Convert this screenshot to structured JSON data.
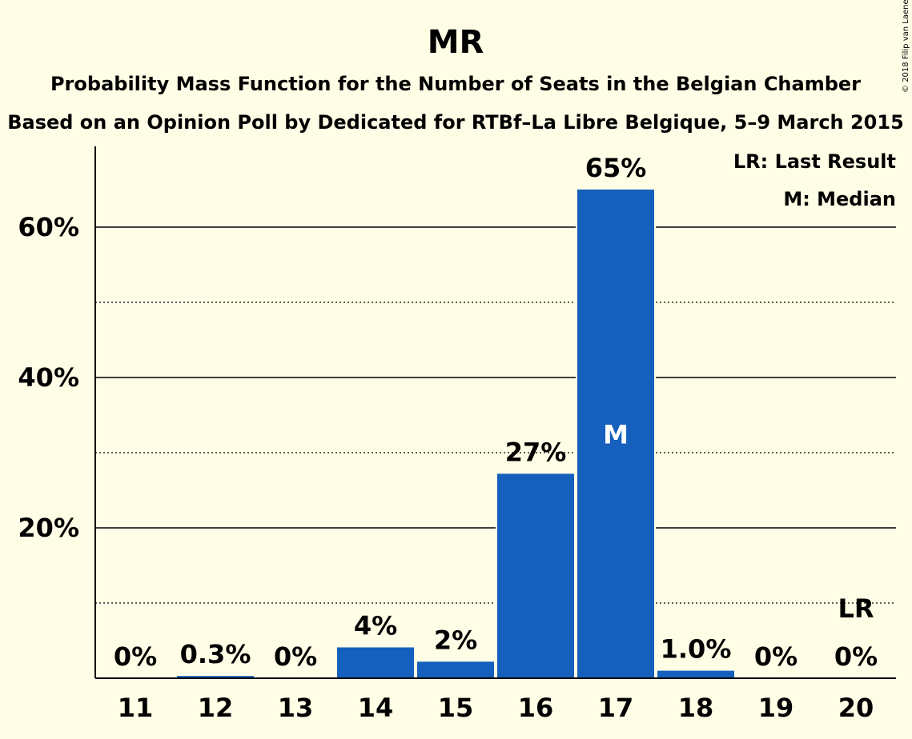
{
  "chart_data": {
    "type": "bar",
    "title": "MR",
    "subtitle": "Probability Mass Function for the Number of Seats in the Belgian Chamber",
    "subtitle2": "Based on an Opinion Poll by Dedicated for RTBf–La Libre Belgique, 5–9 March 2015",
    "copyright": "© 2018 Filip van Laenen",
    "categories": [
      "11",
      "12",
      "13",
      "14",
      "15",
      "16",
      "17",
      "18",
      "19",
      "20"
    ],
    "values": [
      0,
      0.3,
      0,
      4.1,
      2.2,
      27.2,
      65.0,
      1.0,
      0,
      0
    ],
    "value_labels": [
      "0%",
      "0.3%",
      "0%",
      "4%",
      "2%",
      "27%",
      "65%",
      "1.0%",
      "0%",
      "0%"
    ],
    "y_ticks": [
      {
        "value": 20,
        "label": "20%"
      },
      {
        "value": 40,
        "label": "40%"
      },
      {
        "value": 60,
        "label": "60%"
      }
    ],
    "ylim": [
      0,
      70
    ],
    "median_category": "17",
    "median_marker": "M",
    "last_result_category": "20",
    "last_result_marker": "LR",
    "legend": [
      "LR: Last Result",
      "M: Median"
    ],
    "legend_position": "top-right",
    "grid": "solid at 20% steps, dotted at 10% steps",
    "colors": {
      "bar": "#1560bd",
      "background": "#fffde6",
      "grid": "#000000"
    }
  }
}
